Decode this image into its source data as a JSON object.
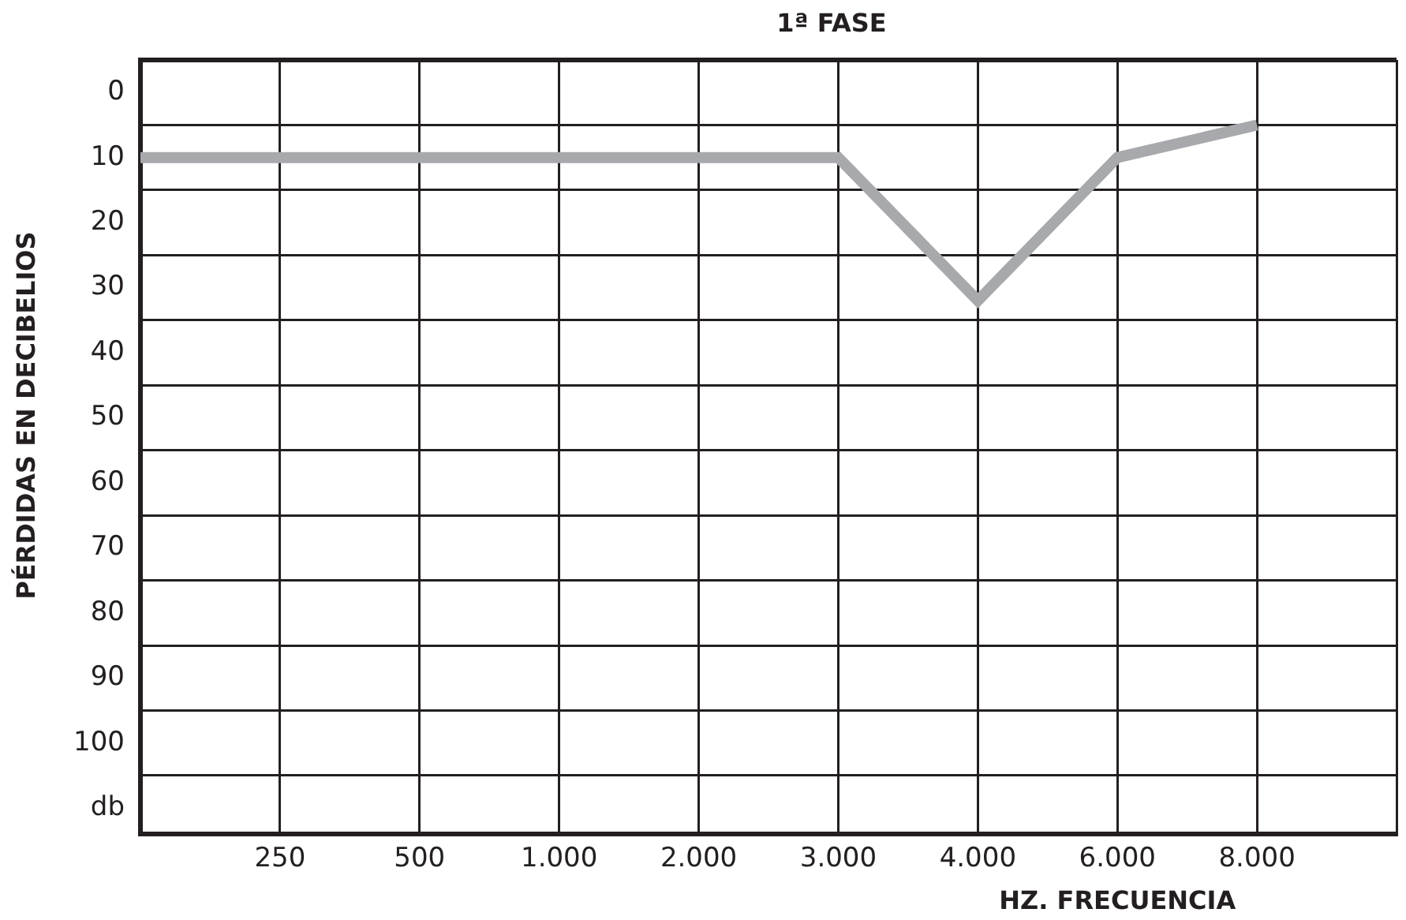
{
  "chart_data": {
    "type": "line",
    "title": "1ª FASE",
    "xlabel": "HZ. FRECUENCIA",
    "ylabel": "PÉRDIDAS EN DECIBELIOS",
    "categories": [
      null,
      "250",
      "500",
      "1.000",
      "2.000",
      "3.000",
      "4.000",
      "6.000",
      "8.000",
      null
    ],
    "series": [
      {
        "color": "#a7a9ac",
        "values": [
          10,
          10,
          10,
          10,
          10,
          10,
          32,
          10,
          5,
          null
        ]
      }
    ],
    "ylim": [
      114,
      -5
    ],
    "yticks": [
      {
        "value": -5,
        "label": null
      },
      0,
      {
        "value": 5,
        "label": null
      },
      10,
      {
        "value": 15,
        "label": null
      },
      20,
      {
        "value": 25,
        "label": null
      },
      30,
      {
        "value": 35,
        "label": null
      },
      40,
      {
        "value": 45,
        "label": null
      },
      50,
      {
        "value": 55,
        "label": null
      },
      60,
      {
        "value": 65,
        "label": null
      },
      70,
      {
        "value": 75,
        "label": null
      },
      80,
      {
        "value": 85,
        "label": null
      },
      90,
      {
        "value": 95,
        "label": null
      },
      100,
      {
        "value": 105,
        "label": null
      },
      {
        "value": 110,
        "label": "db"
      }
    ],
    "grid": true,
    "legend": false,
    "marker": "none",
    "line_style": "solid"
  }
}
